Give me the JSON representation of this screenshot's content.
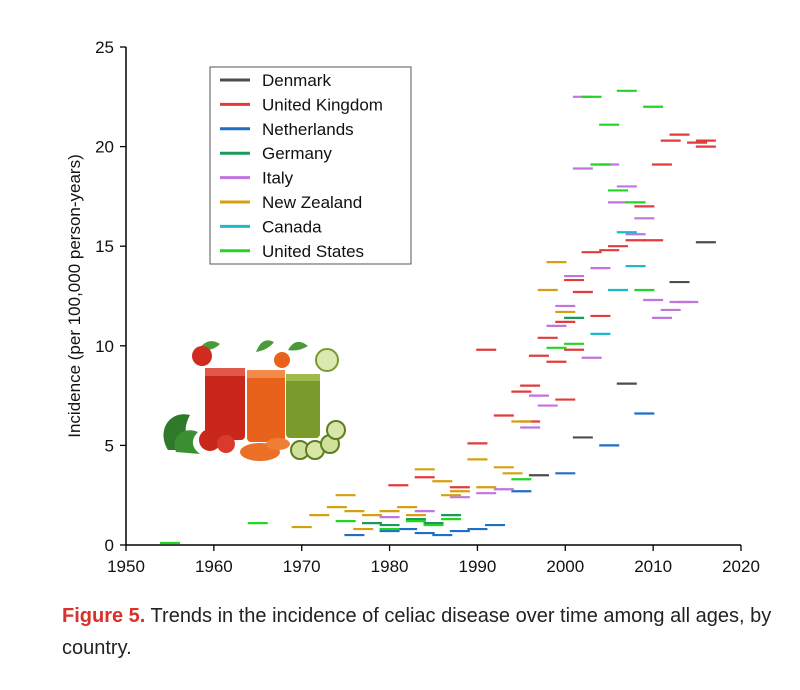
{
  "chart_data": {
    "type": "scatter",
    "marker": "horizontal-dash",
    "title": "",
    "xlabel": "",
    "ylabel": "Incidence (per 100,000 person-years)",
    "xlim": [
      1950,
      2020
    ],
    "ylim": [
      0,
      25
    ],
    "x_ticks": [
      "1950",
      "1960",
      "1970",
      "1980",
      "1990",
      "2000",
      "2010",
      "2020"
    ],
    "y_ticks": [
      "0",
      "5",
      "10",
      "15",
      "20",
      "25"
    ],
    "legend_position": "top-left",
    "series": [
      {
        "name": "Denmark",
        "color": "#4d4d4d",
        "x": [
          1997,
          2002,
          2007,
          2013,
          2016
        ],
        "y": [
          3.5,
          5.4,
          8.1,
          13.2,
          15.2
        ]
      },
      {
        "name": "United Kingdom",
        "color": "#e23b3b",
        "x": [
          1981,
          1984,
          1988,
          1990,
          1991,
          1993,
          1995,
          1996,
          1997,
          1998,
          1999,
          2000,
          2000,
          2001,
          2002,
          2003,
          2004,
          2005,
          2006,
          2008,
          2009,
          2010,
          2011,
          2012,
          2013,
          2015,
          2016,
          2016,
          2001,
          1996
        ],
        "y": [
          3.0,
          3.4,
          2.9,
          5.1,
          9.8,
          6.5,
          7.7,
          8.0,
          9.5,
          10.4,
          9.2,
          7.3,
          11.2,
          13.3,
          12.7,
          14.7,
          11.5,
          14.8,
          15.0,
          15.3,
          17.0,
          15.3,
          19.1,
          20.3,
          20.6,
          20.2,
          20.0,
          20.3,
          9.8,
          6.2
        ]
      },
      {
        "name": "Netherlands",
        "color": "#1f6fc7",
        "x": [
          1976,
          1980,
          1982,
          1984,
          1986,
          1988,
          1990,
          1992,
          1995,
          2000,
          2005,
          2009
        ],
        "y": [
          0.5,
          0.7,
          0.8,
          0.6,
          0.5,
          0.7,
          0.8,
          1.0,
          2.7,
          3.6,
          5.0,
          6.6
        ]
      },
      {
        "name": "Germany",
        "color": "#1a9b5a",
        "x": [
          1978,
          1980,
          1983,
          1985,
          1987,
          2001
        ],
        "y": [
          1.1,
          1.0,
          1.3,
          1.1,
          1.5,
          11.4
        ]
      },
      {
        "name": "Italy",
        "color": "#c074de",
        "x": [
          1980,
          1984,
          1988,
          1991,
          1993,
          1996,
          1997,
          1998,
          1999,
          2000,
          2001,
          2002,
          2002,
          2003,
          2004,
          2005,
          2006,
          2007,
          2008,
          2009,
          2010,
          2011,
          2012,
          2013,
          2014
        ],
        "y": [
          1.4,
          1.7,
          2.4,
          2.6,
          2.8,
          5.9,
          7.5,
          7.0,
          11.0,
          12.0,
          13.5,
          22.5,
          18.9,
          9.4,
          13.9,
          19.1,
          17.2,
          18.0,
          15.6,
          16.4,
          12.3,
          11.4,
          11.8,
          12.2,
          12.2
        ]
      },
      {
        "name": "New Zealand",
        "color": "#d4a011",
        "x": [
          1970,
          1972,
          1974,
          1975,
          1976,
          1977,
          1978,
          1980,
          1982,
          1983,
          1984,
          1986,
          1987,
          1988,
          1990,
          1991,
          1993,
          1994,
          1995,
          1998,
          1999,
          2000
        ],
        "y": [
          0.9,
          1.5,
          1.9,
          2.5,
          1.7,
          0.8,
          1.5,
          1.7,
          1.9,
          1.5,
          3.8,
          3.2,
          2.5,
          2.7,
          4.3,
          2.9,
          3.9,
          3.6,
          6.2,
          12.8,
          14.2,
          11.7
        ]
      },
      {
        "name": "Canada",
        "color": "#1cb9c9",
        "x": [
          2004,
          2006,
          2007,
          2008
        ],
        "y": [
          10.6,
          12.8,
          15.7,
          14.0
        ]
      },
      {
        "name": "United States",
        "color": "#22d424",
        "x": [
          1955,
          1965,
          1975,
          1980,
          1983,
          1985,
          1987,
          1995,
          1999,
          2001,
          2003,
          2004,
          2005,
          2006,
          2007,
          2008,
          2009,
          2010
        ],
        "y": [
          0.1,
          1.1,
          1.2,
          0.8,
          1.2,
          1.0,
          1.3,
          3.3,
          9.9,
          10.1,
          22.5,
          19.1,
          21.1,
          17.8,
          22.8,
          17.2,
          12.8,
          22.0
        ]
      }
    ]
  },
  "caption": {
    "label": "Figure 5.",
    "text": " Trends in the incidence of celiac disease over time among all ages, by country."
  },
  "illustration": {
    "icon": "vegetable-juice-glasses-icon",
    "colors": {
      "tomato": "#c9261c",
      "carrot": "#e8621b",
      "cucumber": "#7a9a2b",
      "leaf": "#2f7a2a"
    }
  }
}
